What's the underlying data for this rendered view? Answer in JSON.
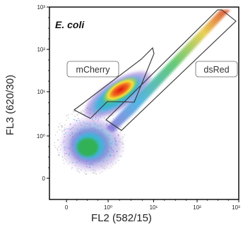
{
  "chart_data": {
    "type": "scatter",
    "title": "E. coli",
    "xlabel": "FL2 (582/15)",
    "ylabel": "FL3 (620/30)",
    "x_scale": "biexponential",
    "y_scale": "biexponential",
    "x_ticks": [
      "0",
      "10⁰",
      "10¹",
      "10²",
      "10³"
    ],
    "y_ticks": [
      "0",
      "10⁰",
      "10¹",
      "10²",
      "10³"
    ],
    "xlim": [
      0,
      1000
    ],
    "ylim": [
      0,
      1000
    ],
    "grid": false,
    "density_colormap": [
      "#9b6bd4",
      "#3fb6e8",
      "#38c060",
      "#f1e23a",
      "#f08a24",
      "#e21b1b"
    ],
    "populations": [
      {
        "x": 0.5,
        "y": 0.3,
        "density": "high"
      },
      {
        "x": 2,
        "y": 10,
        "density": "very high"
      },
      {
        "x": 100,
        "y": 100,
        "density": "low (diagonal streak)"
      }
    ],
    "gates": [
      {
        "name": "mCherry"
      },
      {
        "name": "dsRed"
      }
    ]
  }
}
